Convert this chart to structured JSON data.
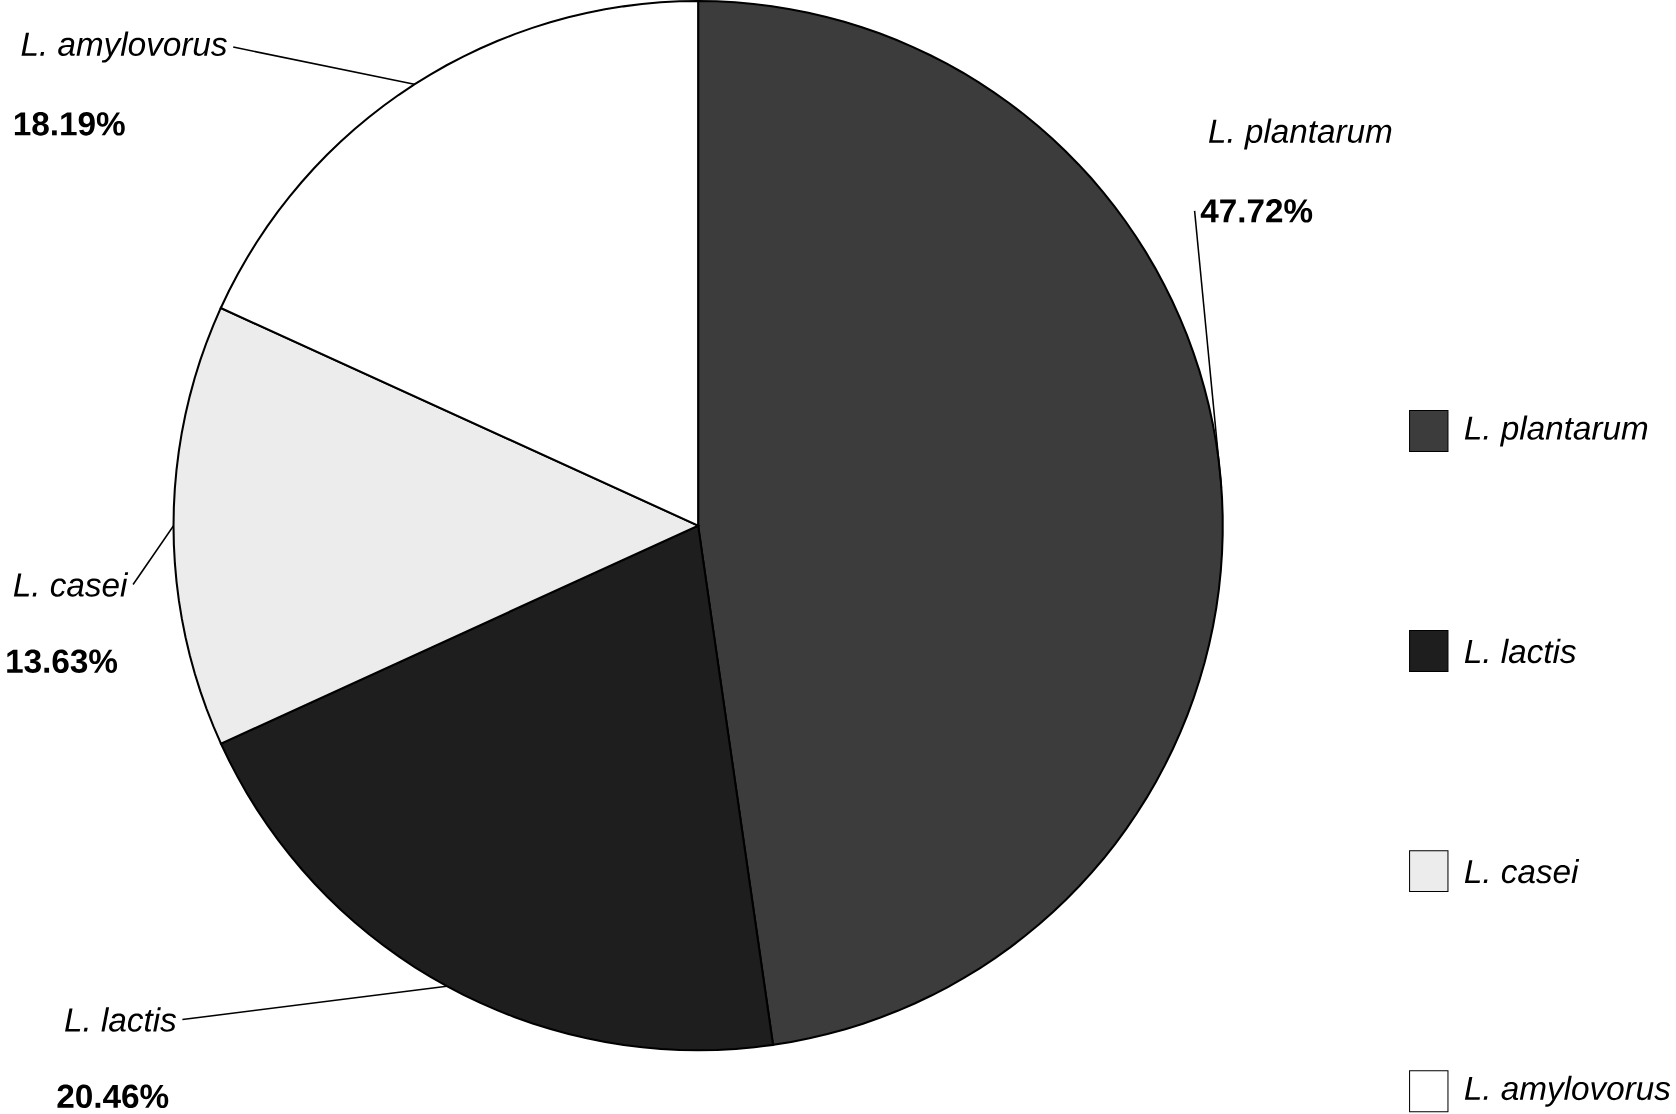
{
  "chart_data": {
    "type": "pie",
    "categories": [
      "L. plantarum",
      "L. lactis",
      "L. casei",
      "L. amylovorus"
    ],
    "values": [
      47.72,
      20.46,
      13.63,
      18.19
    ],
    "value_labels": [
      "47.72%",
      "20.46%",
      "13.63%",
      "18.19%"
    ],
    "colors": [
      "#3c3c3c",
      "#1e1e1e",
      "#ececec",
      "#ffffff"
    ],
    "legend": "right"
  }
}
